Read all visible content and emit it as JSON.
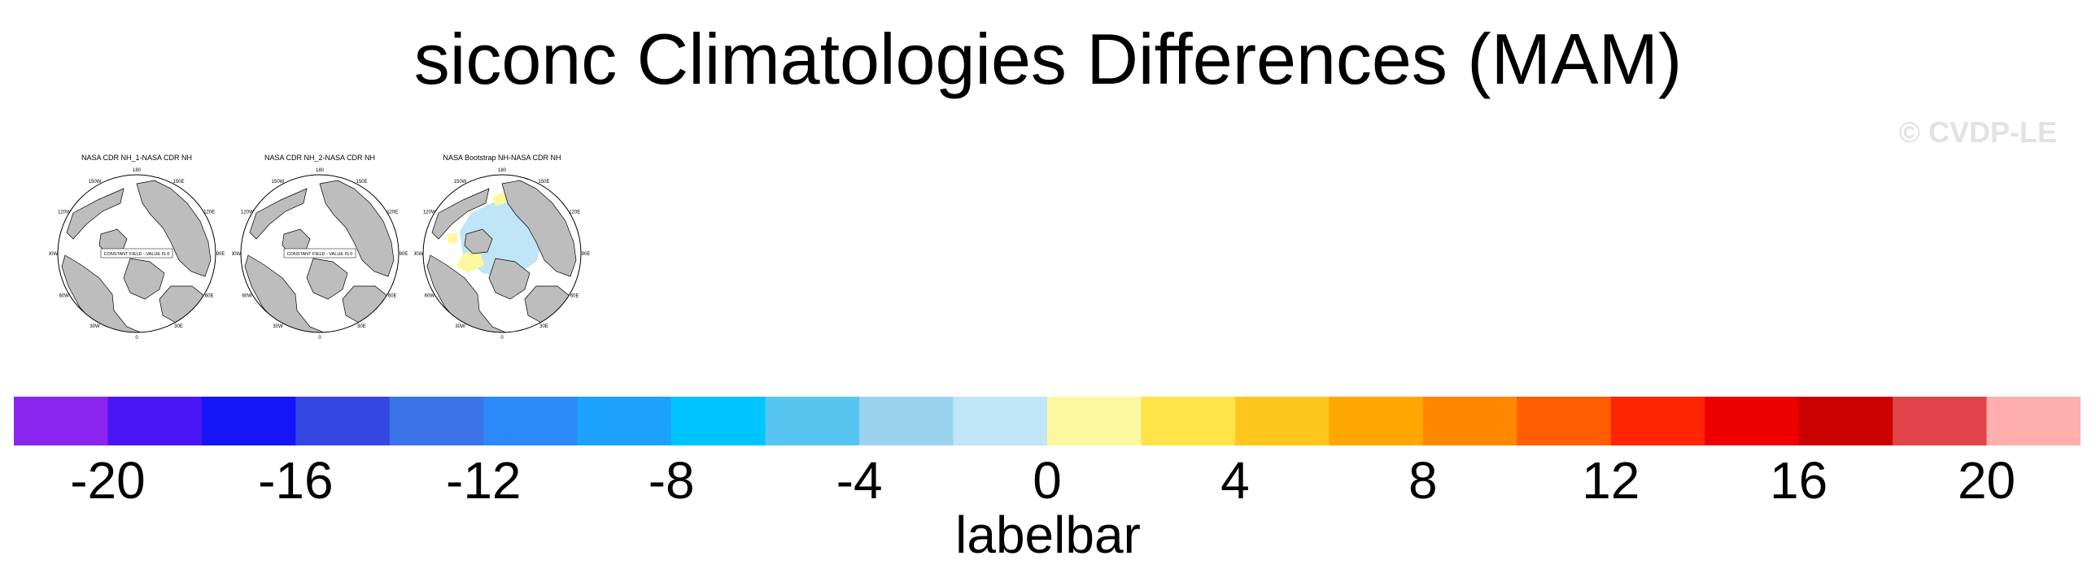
{
  "title": "siconc Climatologies Differences (MAM)",
  "watermark": "© CVDP-LE",
  "panels": [
    {
      "title": "NASA CDR NH_1-NASA CDR NH",
      "box_text": "CONSTANT FIELD - VALUE IS 0",
      "ice_anomaly": false
    },
    {
      "title": "NASA CDR NH_2-NASA CDR NH",
      "box_text": "CONSTANT FIELD - VALUE IS 0",
      "ice_anomaly": false
    },
    {
      "title": "NASA Bootstrap NH-NASA CDR NH",
      "box_text": "",
      "ice_anomaly": true
    }
  ],
  "longitude_labels": [
    "180",
    "150E",
    "120E",
    "90E",
    "60E",
    "30E",
    "0",
    "30W",
    "60W",
    "90W",
    "120W",
    "150W"
  ],
  "colorbar": {
    "colors": [
      "#8a25f0",
      "#4b16f5",
      "#1515f7",
      "#3447e0",
      "#3b74e6",
      "#2a8af8",
      "#1ca2fc",
      "#00c4ff",
      "#56c6f0",
      "#9bd3ee",
      "#bfe5f7",
      "#fdf8a0",
      "#ffe447",
      "#ffc61d",
      "#ffa600",
      "#ff8800",
      "#ff5d00",
      "#ff2500",
      "#ee0000",
      "#c90000",
      "#e04448",
      "#ffaeae"
    ],
    "ticks": [
      "-20",
      "-16",
      "-12",
      "-8",
      "-4",
      "0",
      "4",
      "8",
      "12",
      "16",
      "20"
    ],
    "label": "labelbar"
  },
  "colors": {
    "land": "#bdbdbd",
    "ocean": "#ffffff",
    "ice_neg": "#bfe5f7",
    "ice_pos": "#fdf8a0",
    "outline": "#000000"
  }
}
